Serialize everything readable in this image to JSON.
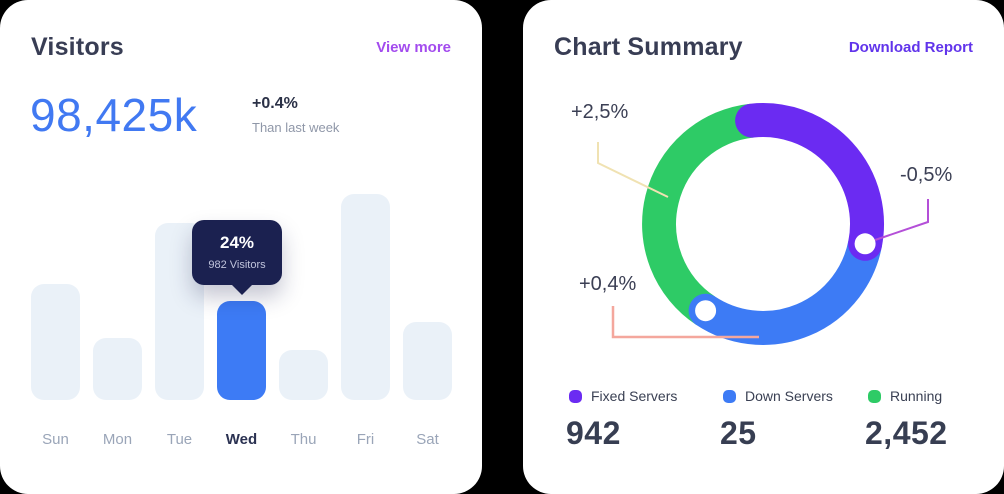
{
  "page": {
    "background": "#000000",
    "card_background": "#ffffff"
  },
  "visitors_card": {
    "title": "Visitors",
    "view_more_label": "View more",
    "view_more_color": "#a34bee",
    "total_visitors": "98,425k",
    "total_color": "#4179f2",
    "delta_percent": "+0.4%",
    "delta_caption": "Than last week",
    "tooltip": {
      "percent": "24%",
      "caption": "982 Visitors",
      "background": "#1b2150"
    },
    "chart_data": {
      "type": "bar",
      "categories": [
        "Sun",
        "Mon",
        "Tue",
        "Wed",
        "Thu",
        "Fri",
        "Sat"
      ],
      "values": [
        28,
        15,
        43,
        24,
        12,
        50,
        19
      ],
      "unit": "%",
      "highlight_index": 3,
      "highlight_label": "Wed",
      "bar_color": "#eaf1f8",
      "highlight_color": "#3d7bf5",
      "title": "Visitors by day of week",
      "xlabel": "",
      "ylabel": "",
      "ylim": [
        0,
        55
      ],
      "grid": false
    }
  },
  "summary_card": {
    "title": "Chart Summary",
    "download_label": "Download Report",
    "download_color": "#6134eb",
    "chart_data": {
      "type": "pie",
      "title": "Chart Summary",
      "legend_position": "bottom",
      "segments": [
        {
          "label": "Fixed Servers",
          "value": 942,
          "display_value": "942",
          "color": "#6b2bf2",
          "annotation": "-0,5%"
        },
        {
          "label": "Down Servers",
          "value": 25,
          "display_value": "25",
          "color": "#3d7bf5",
          "annotation": "+0,4%"
        },
        {
          "label": "Running",
          "value": 2452,
          "display_value": "2,452",
          "color": "#2ecb66",
          "annotation": "+2,5%"
        }
      ],
      "donut_arcs_deg_clockwise_from_top": {
        "fixed_servers": [
          354,
          101
        ],
        "down_servers": [
          101,
          213.5
        ],
        "running": [
          213.5,
          354
        ]
      }
    },
    "annotations": [
      {
        "text": "+2,5%",
        "line_color": "#f0e2b2",
        "target": "Running"
      },
      {
        "text": "-0,5%",
        "line_color": "#b44fd8",
        "target": "Fixed Servers"
      },
      {
        "text": "+0,4%",
        "line_color": "#f4a79d",
        "target": "Down Servers"
      }
    ]
  }
}
